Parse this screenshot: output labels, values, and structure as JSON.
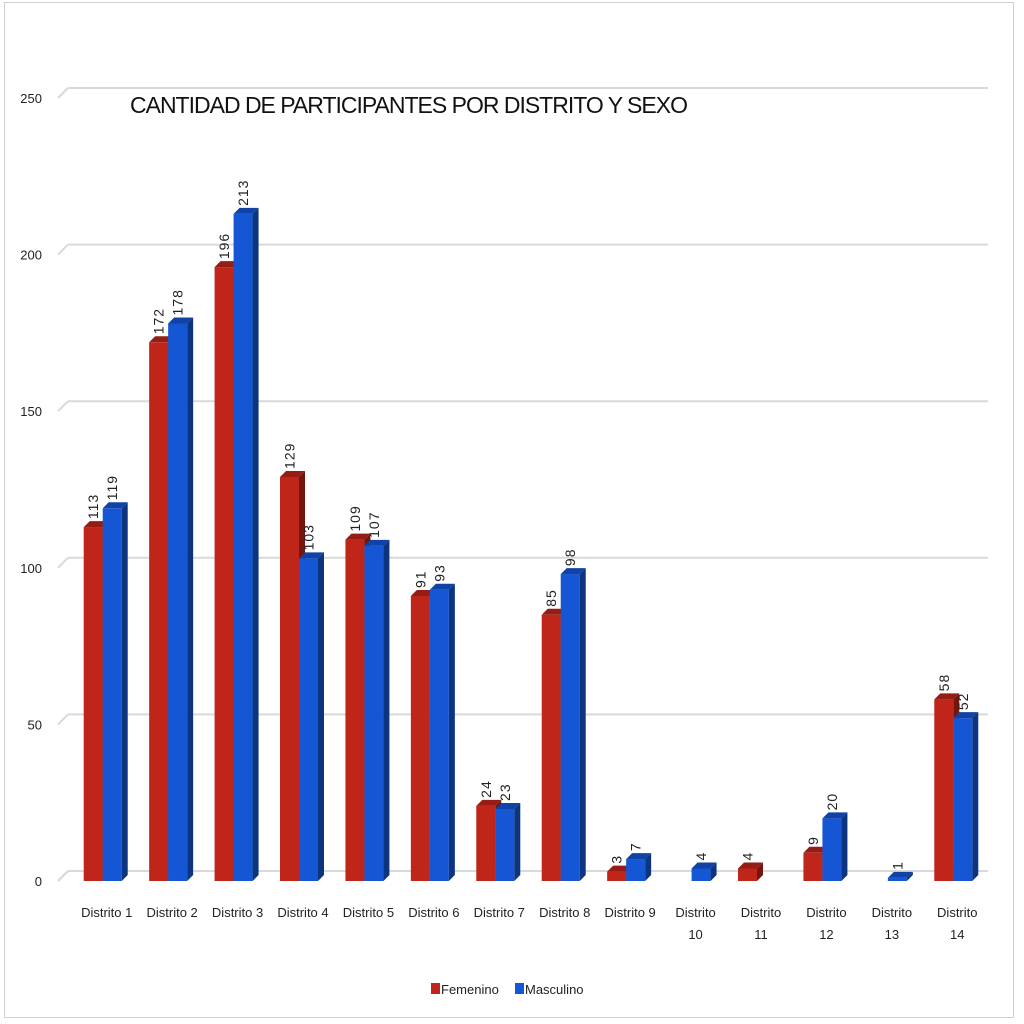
{
  "chart_data": {
    "type": "bar",
    "title": "CANTIDAD DE PARTICIPANTES POR DISTRITO Y SEXO",
    "xlabel": "",
    "ylabel": "",
    "ylim": [
      0,
      250
    ],
    "yticks": [
      "0",
      "50",
      "100",
      "150",
      "200",
      "250"
    ],
    "grid": true,
    "legend_position": "bottom",
    "categories": [
      [
        "Distrito 1"
      ],
      [
        "Distrito 2"
      ],
      [
        "Distrito 3"
      ],
      [
        "Distrito 4"
      ],
      [
        "Distrito 5"
      ],
      [
        "Distrito 6"
      ],
      [
        "Distrito 7"
      ],
      [
        "Distrito 8"
      ],
      [
        "Distrito 9"
      ],
      [
        "Distrito",
        "10"
      ],
      [
        "Distrito",
        "11"
      ],
      [
        "Distrito",
        "12"
      ],
      [
        "Distrito",
        "13"
      ],
      [
        "Distrito",
        "14"
      ]
    ],
    "series": [
      {
        "name": "Femenino",
        "color": "#c0251a",
        "values": [
          113,
          172,
          196,
          129,
          109,
          91,
          24,
          85,
          3,
          null,
          4,
          9,
          null,
          58
        ]
      },
      {
        "name": "Masculino",
        "color": "#1556d4",
        "values": [
          119,
          178,
          213,
          103,
          107,
          93,
          23,
          98,
          7,
          4,
          null,
          20,
          1,
          52
        ]
      }
    ]
  }
}
